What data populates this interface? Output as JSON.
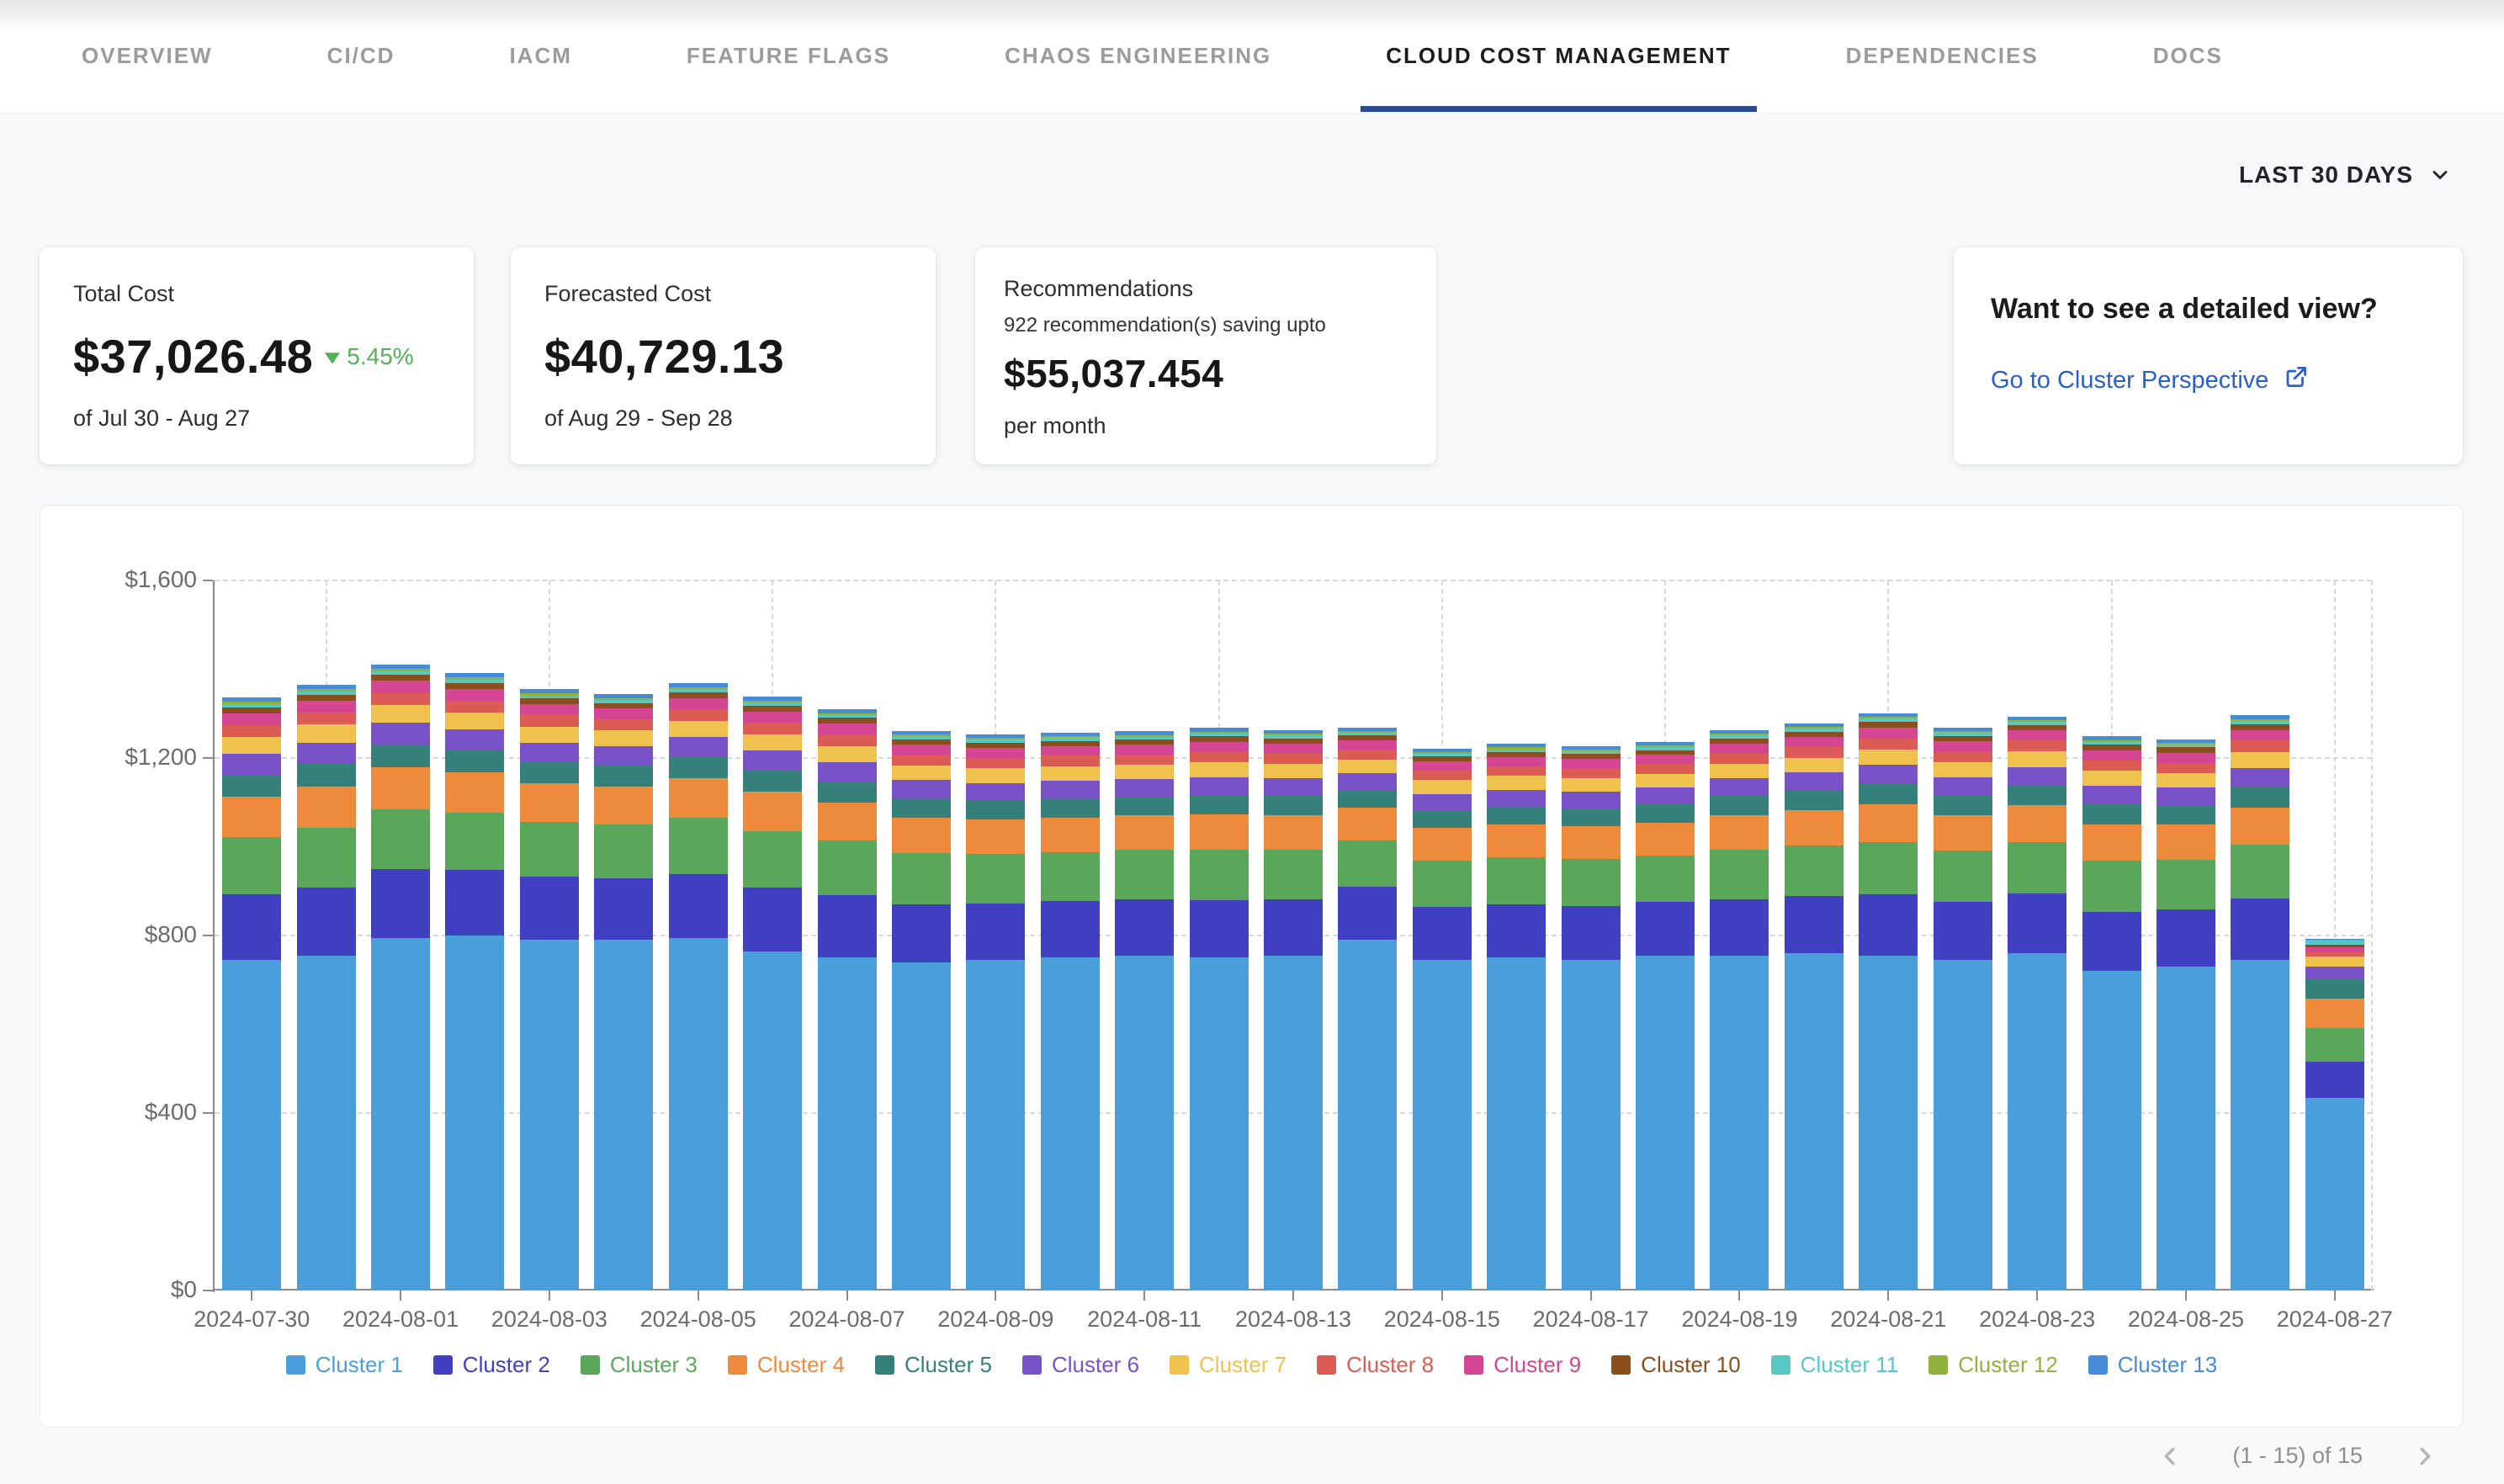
{
  "header": {
    "tabs": [
      {
        "label": "OVERVIEW"
      },
      {
        "label": "CI/CD"
      },
      {
        "label": "IACM"
      },
      {
        "label": "FEATURE FLAGS"
      },
      {
        "label": "CHAOS ENGINEERING"
      },
      {
        "label": "CLOUD COST MANAGEMENT"
      },
      {
        "label": "DEPENDENCIES"
      },
      {
        "label": "DOCS"
      }
    ],
    "active_tab_index": 5
  },
  "toolbar": {
    "period_selector": "LAST 30 DAYS"
  },
  "cards": {
    "total_cost": {
      "title": "Total Cost",
      "value": "$37,026.48",
      "change": "5.45%",
      "change_direction": "down",
      "period": "of Jul 30 - Aug 27"
    },
    "forecasted_cost": {
      "title": "Forecasted Cost",
      "value": "$40,729.13",
      "period": "of Aug 29 - Sep 28"
    },
    "recommendations": {
      "title": "Recommendations",
      "subtitle": "922 recommendation(s) saving upto",
      "value": "$55,037.454",
      "suffix": "per month"
    },
    "detail_view": {
      "title": "Want to see a detailed view?",
      "link_label": "Go to Cluster Perspective"
    }
  },
  "chart_data": {
    "type": "bar",
    "stacked": true,
    "title": "",
    "xlabel": "",
    "ylabel": "",
    "ylim": [
      0,
      1600
    ],
    "y_ticks": [
      {
        "value": 0,
        "label": "$0"
      },
      {
        "value": 400,
        "label": "$400"
      },
      {
        "value": 800,
        "label": "$800"
      },
      {
        "value": 1200,
        "label": "$1,200"
      },
      {
        "value": 1600,
        "label": "$1,600"
      }
    ],
    "grid": "dashed",
    "legend_position": "bottom",
    "x": [
      "2024-07-30",
      "2024-07-31",
      "2024-08-01",
      "2024-08-02",
      "2024-08-03",
      "2024-08-04",
      "2024-08-05",
      "2024-08-06",
      "2024-08-07",
      "2024-08-08",
      "2024-08-09",
      "2024-08-10",
      "2024-08-11",
      "2024-08-12",
      "2024-08-13",
      "2024-08-14",
      "2024-08-15",
      "2024-08-16",
      "2024-08-17",
      "2024-08-18",
      "2024-08-19",
      "2024-08-20",
      "2024-08-21",
      "2024-08-22",
      "2024-08-23",
      "2024-08-24",
      "2024-08-25",
      "2024-08-26",
      "2024-08-27"
    ],
    "x_tick_every": 2,
    "series": [
      {
        "name": "Cluster 1",
        "color": "#4a9fda",
        "values": [
          745,
          755,
          795,
          800,
          790,
          790,
          795,
          765,
          750,
          740,
          745,
          750,
          755,
          750,
          755,
          790,
          745,
          750,
          745,
          755,
          755,
          760,
          755,
          745,
          760,
          720,
          730,
          745,
          435
        ]
      },
      {
        "name": "Cluster 2",
        "color": "#4240c2",
        "values": [
          148,
          153,
          154,
          148,
          142,
          139,
          144,
          144,
          141,
          131,
          127,
          127,
          127,
          130,
          127,
          120,
          120,
          121,
          121,
          121,
          127,
          130,
          137,
          131,
          134,
          133,
          129,
          138,
          80
        ]
      },
      {
        "name": "Cluster 3",
        "color": "#5aa75c",
        "values": [
          129,
          134,
          135,
          129,
          124,
          122,
          126,
          126,
          123,
          114,
          111,
          111,
          111,
          113,
          111,
          105,
          104,
          106,
          106,
          105,
          111,
          113,
          119,
          115,
          117,
          116,
          112,
          121,
          76
        ]
      },
      {
        "name": "Cluster 4",
        "color": "#ed8a3b",
        "values": [
          91,
          94,
          95,
          91,
          87,
          85,
          89,
          89,
          86,
          80,
          78,
          78,
          78,
          80,
          78,
          74,
          73,
          74,
          74,
          74,
          78,
          80,
          84,
          81,
          82,
          82,
          79,
          85,
          66
        ]
      },
      {
        "name": "Cluster 5",
        "color": "#35807b",
        "values": [
          50,
          51,
          52,
          50,
          47,
          47,
          48,
          48,
          47,
          44,
          43,
          43,
          42,
          44,
          43,
          40,
          40,
          40,
          40,
          40,
          43,
          44,
          46,
          44,
          45,
          45,
          43,
          46,
          45
        ]
      },
      {
        "name": "Cluster 6",
        "color": "#7a52c8",
        "values": [
          46,
          48,
          48,
          46,
          44,
          43,
          45,
          45,
          44,
          41,
          40,
          40,
          39,
          40,
          40,
          37,
          37,
          38,
          38,
          38,
          40,
          40,
          43,
          41,
          42,
          41,
          40,
          43,
          28
        ]
      },
      {
        "name": "Cluster 7",
        "color": "#efc14d",
        "values": [
          38,
          40,
          40,
          38,
          37,
          36,
          37,
          37,
          36,
          34,
          33,
          33,
          33,
          34,
          33,
          31,
          31,
          31,
          31,
          31,
          33,
          34,
          35,
          34,
          35,
          34,
          33,
          36,
          22
        ]
      },
      {
        "name": "Cluster 8",
        "color": "#dc5b55",
        "values": [
          27,
          27,
          28,
          27,
          25,
          25,
          26,
          26,
          25,
          23,
          23,
          23,
          23,
          23,
          23,
          22,
          21,
          22,
          22,
          22,
          23,
          23,
          25,
          24,
          24,
          24,
          23,
          25,
          11
        ]
      },
      {
        "name": "Cluster 9",
        "color": "#d44592",
        "values": [
          26,
          27,
          27,
          26,
          25,
          24,
          25,
          25,
          25,
          23,
          22,
          22,
          22,
          23,
          22,
          21,
          21,
          21,
          21,
          21,
          22,
          23,
          24,
          23,
          23,
          23,
          23,
          24,
          10
        ]
      },
      {
        "name": "Cluster 10",
        "color": "#8a4e1f",
        "values": [
          14,
          14,
          14,
          14,
          13,
          13,
          13,
          13,
          13,
          12,
          12,
          12,
          12,
          12,
          12,
          11,
          11,
          11,
          11,
          11,
          12,
          12,
          13,
          12,
          12,
          12,
          12,
          13,
          6
        ]
      },
      {
        "name": "Cluster 11",
        "color": "#56c8c4",
        "values": [
          8,
          8,
          8,
          8,
          7,
          7,
          7,
          7,
          7,
          7,
          7,
          7,
          6,
          7,
          7,
          6,
          6,
          6,
          6,
          6,
          7,
          7,
          7,
          7,
          7,
          7,
          7,
          7,
          9
        ]
      },
      {
        "name": "Cluster 12",
        "color": "#8fb33c",
        "values": [
          5,
          5,
          5,
          5,
          5,
          4,
          5,
          5,
          4,
          4,
          4,
          4,
          4,
          4,
          4,
          4,
          4,
          4,
          4,
          4,
          4,
          4,
          4,
          4,
          4,
          4,
          4,
          4,
          2
        ]
      },
      {
        "name": "Cluster 13",
        "color": "#458bd8",
        "values": [
          9,
          10,
          10,
          9,
          9,
          9,
          9,
          9,
          9,
          8,
          8,
          8,
          8,
          8,
          8,
          8,
          8,
          8,
          8,
          8,
          8,
          8,
          9,
          8,
          9,
          9,
          8,
          9,
          3
        ]
      }
    ]
  },
  "pagination": {
    "label": "(1 - 15) of 15"
  },
  "colors": {
    "accent": "#2b4a8f",
    "link": "#2a5fc9",
    "positive": "#55b158"
  }
}
